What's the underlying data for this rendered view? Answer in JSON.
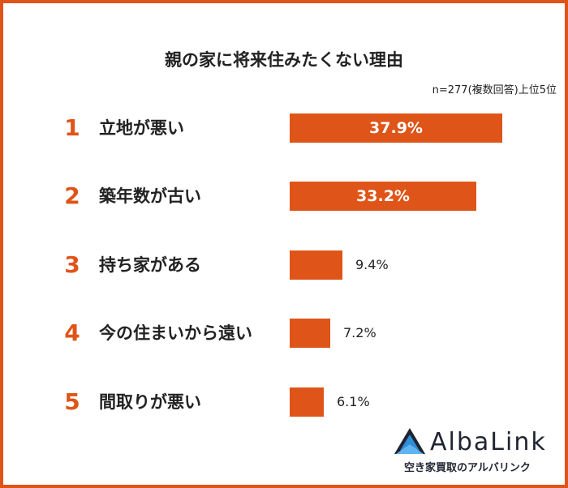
{
  "chart_data": {
    "type": "bar",
    "title": "親の家に将来住みたくない理由",
    "note": "n=277(複数回答)上位5位",
    "xlim": [
      0,
      40
    ],
    "bars": [
      {
        "rank": "1",
        "category": "立地が悪い",
        "value": 37.9,
        "label": "37.9%"
      },
      {
        "rank": "2",
        "category": "築年数が古い",
        "value": 33.2,
        "label": "33.2%"
      },
      {
        "rank": "3",
        "category": "持ち家がある",
        "value": 9.4,
        "label": "9.4%"
      },
      {
        "rank": "4",
        "category": "今の住まいから遠い",
        "value": 7.2,
        "label": "7.2%"
      },
      {
        "rank": "5",
        "category": "間取りが悪い",
        "value": 6.1,
        "label": "6.1%"
      }
    ]
  },
  "logo": {
    "name": "AlbaLink",
    "tagline": "空き家買取のアルバリンク",
    "icon": "mountain-logo-icon"
  },
  "colors": {
    "accent": "#df5418",
    "text": "#222222",
    "logo_dark": "#1f2430",
    "logo_blue": "#2e8fd6"
  }
}
